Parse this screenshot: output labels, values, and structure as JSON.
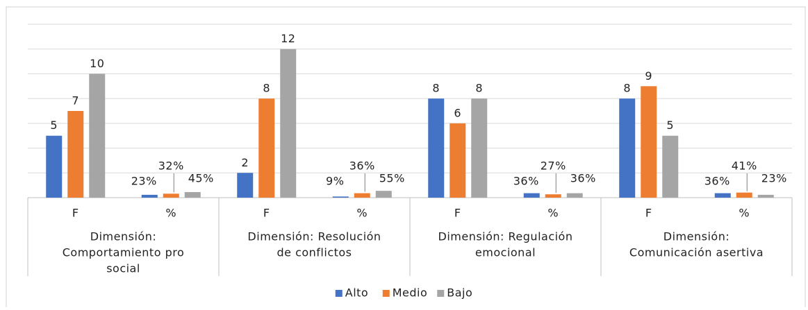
{
  "chart_data": {
    "type": "bar",
    "categories": [
      "F",
      "%",
      "F",
      "%",
      "F",
      "%",
      "F",
      "%"
    ],
    "groups": [
      [
        "Dimensión:",
        "Comportamiento pro",
        "social"
      ],
      [
        "Dimensión: Resolución",
        "de conflictos"
      ],
      [
        "Dimensión: Regulación",
        "emocional"
      ],
      [
        "Dimensión:",
        "Comunicación asertiva"
      ]
    ],
    "series": [
      {
        "name": "Alto",
        "color": "#4472c4",
        "values": [
          5,
          0.23,
          2,
          0.09,
          8,
          0.36,
          8,
          0.36
        ],
        "value_labels": [
          "5",
          "23%",
          "2",
          "9%",
          "8",
          "36%",
          "8",
          "36%"
        ]
      },
      {
        "name": "Medio",
        "color": "#ed7d31",
        "values": [
          7,
          0.32,
          8,
          0.36,
          6,
          0.27,
          9,
          0.41
        ],
        "value_labels": [
          "7",
          "32%",
          "8",
          "36%",
          "6",
          "27%",
          "9",
          "41%"
        ]
      },
      {
        "name": "Bajo",
        "color": "#a5a5a5",
        "values": [
          10,
          0.45,
          12,
          0.55,
          8,
          0.36,
          5,
          0.23
        ],
        "value_labels": [
          "10",
          "45%",
          "12",
          "55%",
          "8",
          "36%",
          "5",
          "23%"
        ]
      }
    ],
    "ylim": [
      0,
      14
    ],
    "yticks": [
      0,
      2,
      4,
      6,
      8,
      10,
      12,
      14
    ],
    "grid": true,
    "legend": "bottom"
  }
}
